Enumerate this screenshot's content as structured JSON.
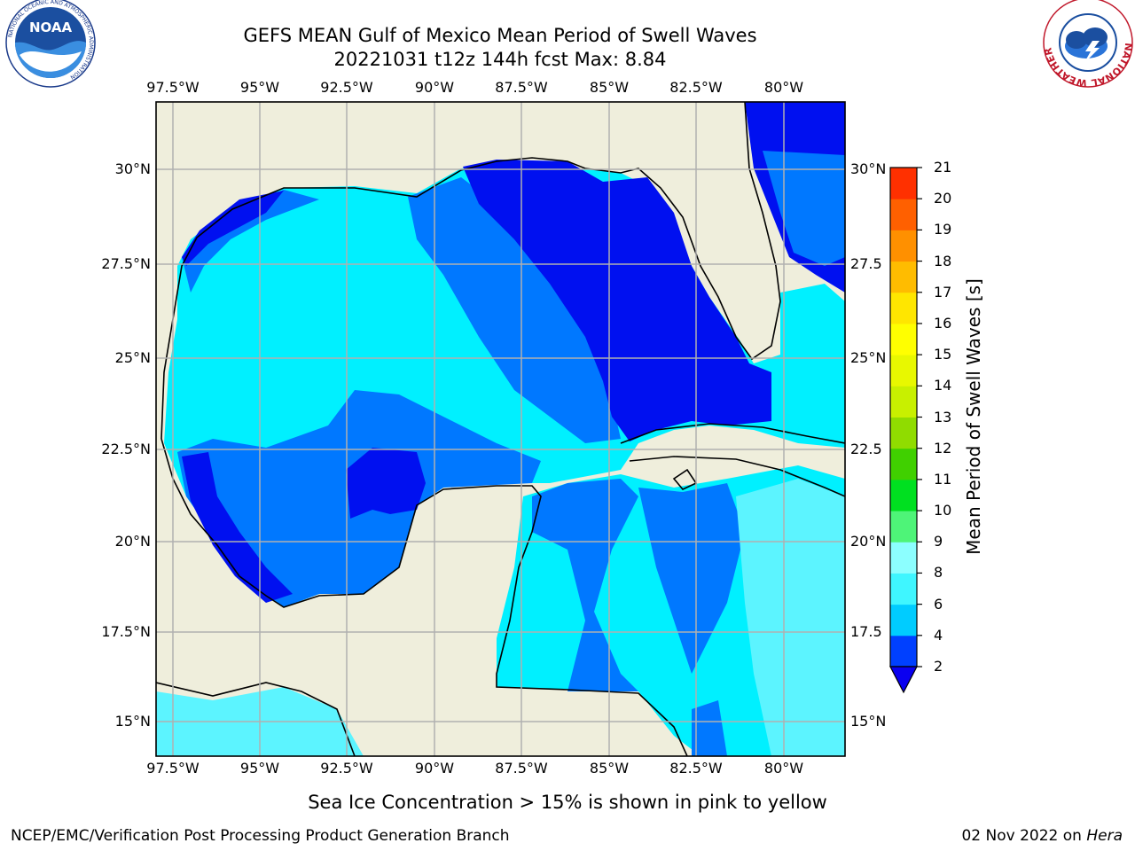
{
  "title": {
    "line1": "GEFS MEAN Gulf of Mexico Mean Period of Swell Waves",
    "line2": "20221031 t12z 144h fcst   Max: 8.84"
  },
  "map": {
    "lon_range": [
      -98,
      -78
    ],
    "lat_range": [
      14,
      31.6
    ],
    "lon_ticks": [
      "97.5°W",
      "95°W",
      "92.5°W",
      "90°W",
      "87.5°W",
      "85°W",
      "82.5°W",
      "80°W"
    ],
    "lat_ticks_left": [
      "30°N",
      "27.5°N",
      "25°N",
      "22.5°N",
      "20°N",
      "17.5°N",
      "15°N"
    ],
    "lat_ticks_right": [
      "30°N",
      "27.5",
      "25°N",
      "22.5",
      "20°N",
      "17.5",
      "15°N"
    ],
    "land_color": "#efeedc",
    "grid_color": "#b0b0b0"
  },
  "colorbar": {
    "title": "Mean Period of Swell Waves [s]",
    "labels": [
      "2",
      "4",
      "6",
      "8",
      "9",
      "10",
      "11",
      "12",
      "13",
      "14",
      "15",
      "16",
      "17",
      "18",
      "19",
      "20",
      "21"
    ],
    "colors": [
      "#0040ff",
      "#00ccff",
      "#3ff6ff",
      "#8cffff",
      "#4ef478",
      "#00e020",
      "#40d000",
      "#90dc00",
      "#c8f000",
      "#e8f800",
      "#ffff00",
      "#ffe600",
      "#ffbc00",
      "#ff9000",
      "#ff6000",
      "#ff3000"
    ],
    "extend_color": "#0a00f0"
  },
  "footnote": "Sea Ice Concentration > 15% is shown in pink to yellow",
  "credit": "NCEP/EMC/Verification Post Processing Product Generation Branch",
  "date": "02 Nov 2022 on ",
  "date_machine": "Hera",
  "logos": {
    "left_text": "NOAA",
    "left_ring": "NATIONAL OCEANIC AND ATMOSPHERIC ADMINISTRATION",
    "right_ring": "NATIONAL WEATHER SERVICE"
  }
}
